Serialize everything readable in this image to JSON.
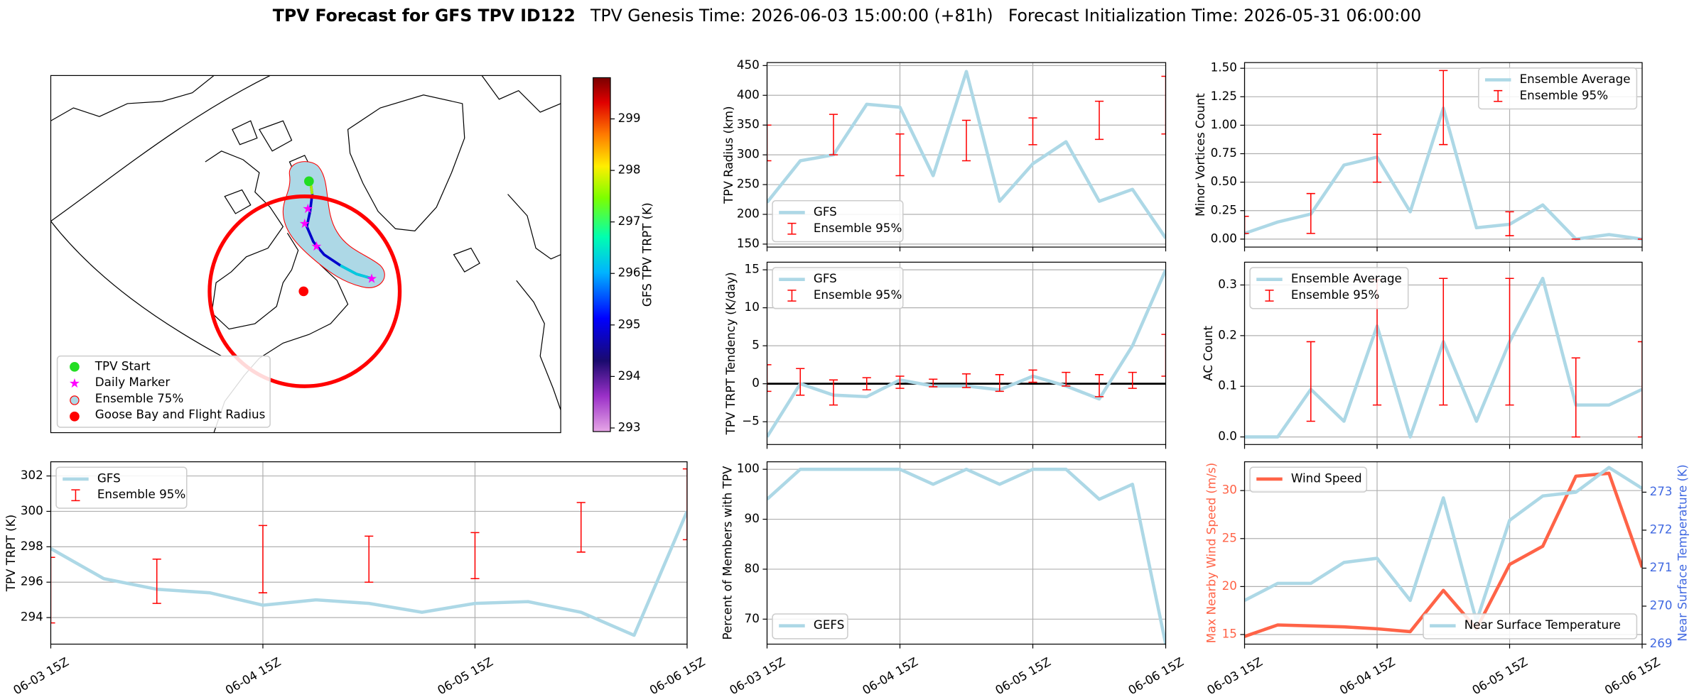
{
  "figure_title": {
    "main": "TPV Forecast for GFS TPV ID122",
    "genesis": "TPV Genesis Time: 2026-06-03 15:00:00 (+81h)",
    "init": "Forecast Initialization Time: 2026-05-31 06:00:00"
  },
  "map": {
    "legend": [
      "TPV Start",
      "Daily Marker",
      "Ensemble 75%",
      "Goose Bay and Flight Radius"
    ],
    "colorbar": {
      "label": "GFS TPV TRPT (K)",
      "lim": [
        292.93,
        299.8
      ],
      "ticks": [
        293,
        294,
        295,
        296,
        297,
        298,
        299
      ]
    }
  },
  "chart_data": [
    {
      "type": "line",
      "ylabel": "TPV Radius (km)",
      "grid": true,
      "legend": "lower left",
      "categories": [
        "06-03 15Z",
        null,
        null,
        null,
        "06-04 15Z",
        null,
        null,
        null,
        "06-05 15Z",
        null,
        null,
        null,
        "06-06 15Z"
      ],
      "ylim": [
        145,
        455
      ],
      "yticks": [
        150,
        200,
        250,
        300,
        350,
        400,
        450
      ],
      "series": [
        {
          "name": "GFS",
          "color": "#add8e6",
          "values": [
            220,
            290,
            300,
            385,
            380,
            265,
            440,
            222,
            285,
            322,
            222,
            242,
            160
          ]
        },
        {
          "name": "Ensemble 95%",
          "color": "#ff0000",
          "low": [
            290,
            null,
            300,
            null,
            265,
            null,
            290,
            null,
            317,
            null,
            326,
            null,
            335
          ],
          "high": [
            350,
            null,
            368,
            null,
            335,
            null,
            358,
            null,
            362,
            null,
            390,
            null,
            432
          ]
        }
      ]
    },
    {
      "type": "line",
      "ylabel": "Minor Vortices Count",
      "grid": true,
      "legend": "upper right",
      "categories": [
        "06-03 15Z",
        null,
        null,
        null,
        "06-04 15Z",
        null,
        null,
        null,
        "06-05 15Z",
        null,
        null,
        null,
        "06-06 15Z"
      ],
      "ylim": [
        -0.07,
        1.55
      ],
      "yticks": [
        {
          "value": 0,
          "label": "0.00"
        },
        {
          "value": 0.25,
          "label": "0.25"
        },
        {
          "value": 0.5,
          "label": "0.50"
        },
        {
          "value": 0.75,
          "label": "0.75"
        },
        {
          "value": 1,
          "label": "1.00"
        },
        {
          "value": 1.25,
          "label": "1.25"
        },
        {
          "value": 1.5,
          "label": "1.50"
        }
      ],
      "series": [
        {
          "name": "Ensemble Average",
          "color": "#add8e6",
          "values": [
            0.05,
            0.15,
            0.22,
            0.65,
            0.72,
            0.24,
            1.15,
            0.1,
            0.13,
            0.3,
            0,
            0.04,
            0
          ]
        },
        {
          "name": "Ensemble 95%",
          "color": "#ff0000",
          "low": [
            0.05,
            null,
            0.05,
            null,
            0.5,
            null,
            0.83,
            null,
            0.03,
            null,
            0,
            null,
            0
          ],
          "high": [
            0.2,
            null,
            0.4,
            null,
            0.92,
            null,
            1.48,
            null,
            0.24,
            null,
            0,
            null,
            0
          ]
        }
      ]
    },
    {
      "type": "line",
      "ylabel": "TPV TRPT Tendency (K/day)",
      "grid": true,
      "legend": "upper left",
      "zero_line": true,
      "categories": [
        "06-03 15Z",
        null,
        null,
        null,
        "06-04 15Z",
        null,
        null,
        null,
        "06-05 15Z",
        null,
        null,
        null,
        "06-06 15Z"
      ],
      "ylim": [
        -8,
        16
      ],
      "yticks": [
        {
          "value": -5,
          "label": "−5"
        },
        0,
        5,
        10,
        15
      ],
      "series": [
        {
          "name": "GFS",
          "color": "#add8e6",
          "values": [
            -7,
            0,
            -1.5,
            -1.7,
            0.5,
            -0.3,
            -0.3,
            -0.8,
            1,
            -0.3,
            -2,
            5,
            15
          ]
        },
        {
          "name": "Ensemble 95%",
          "color": "#ff0000",
          "low": [
            -1,
            -1.5,
            -2.8,
            -0.8,
            -0.6,
            -0.4,
            -0.5,
            -1,
            0.2,
            -0.3,
            -1.7,
            -0.6,
            1
          ],
          "high": [
            2.5,
            2,
            0.5,
            0.8,
            1,
            0.6,
            1.3,
            1.2,
            1.8,
            1.5,
            1.2,
            1.5,
            6.5
          ]
        }
      ]
    },
    {
      "type": "line",
      "ylabel": "AC Count",
      "grid": true,
      "legend": "upper left",
      "categories": [
        "06-03 15Z",
        null,
        null,
        null,
        "06-04 15Z",
        null,
        null,
        null,
        "06-05 15Z",
        null,
        null,
        null,
        "06-06 15Z"
      ],
      "ylim": [
        -0.015,
        0.345
      ],
      "yticks": [
        {
          "value": 0,
          "label": "0.0"
        },
        {
          "value": 0.1,
          "label": "0.1"
        },
        {
          "value": 0.2,
          "label": "0.2"
        },
        {
          "value": 0.3,
          "label": "0.3"
        }
      ],
      "series": [
        {
          "name": "Ensemble Average",
          "color": "#add8e6",
          "values": [
            0,
            0,
            0.094,
            0.031,
            0.219,
            0,
            0.188,
            0.031,
            0.188,
            0.313,
            0.063,
            0.063,
            0.094
          ]
        },
        {
          "name": "Ensemble 95%",
          "color": "#ff0000",
          "low": [
            null,
            null,
            0.031,
            null,
            0.063,
            null,
            0.063,
            null,
            0.063,
            null,
            0,
            null,
            0
          ],
          "high": [
            null,
            null,
            0.188,
            null,
            0.31,
            null,
            0.313,
            null,
            0.313,
            null,
            0.156,
            null,
            0.188
          ]
        }
      ]
    },
    {
      "type": "line",
      "ylabel": "TPV TRPT (K)",
      "grid": true,
      "legend": "upper left",
      "categories": [
        "06-03 15Z",
        null,
        null,
        null,
        "06-04 15Z",
        null,
        null,
        null,
        "06-05 15Z",
        null,
        null,
        null,
        "06-06 15Z"
      ],
      "ylim": [
        292.5,
        302.8
      ],
      "yticks": [
        294,
        296,
        298,
        300,
        302
      ],
      "series": [
        {
          "name": "GFS",
          "color": "#add8e6",
          "values": [
            297.9,
            296.2,
            295.6,
            295.4,
            294.7,
            295.0,
            294.8,
            294.3,
            294.8,
            294.9,
            294.3,
            293.0,
            300.0
          ]
        },
        {
          "name": "Ensemble 95%",
          "color": "#ff0000",
          "low": [
            293.7,
            null,
            294.8,
            null,
            295.4,
            null,
            296.0,
            null,
            296.2,
            null,
            297.7,
            null,
            298.4
          ],
          "high": [
            297.4,
            null,
            297.3,
            null,
            299.2,
            null,
            298.6,
            null,
            298.8,
            null,
            300.5,
            null,
            302.4
          ]
        }
      ]
    },
    {
      "type": "line",
      "ylabel": "Percent of Members with TPV",
      "grid": true,
      "legend": "lower left",
      "categories": [
        "06-03 15Z",
        null,
        null,
        null,
        "06-04 15Z",
        null,
        null,
        null,
        "06-05 15Z",
        null,
        null,
        null,
        "06-06 15Z"
      ],
      "ylim": [
        65,
        101.5
      ],
      "yticks": [
        70,
        80,
        90,
        100
      ],
      "series": [
        {
          "name": "GEFS",
          "color": "#add8e6",
          "values": [
            94,
            100,
            100,
            100,
            100,
            97,
            100,
            97,
            100,
            100,
            94,
            97,
            65
          ]
        }
      ]
    },
    {
      "type": "line",
      "ylabel": "Max Nearby Wind Speed (m/s)",
      "ylabel_color": "#ff6347",
      "y2label": "Near Surface Temperature (K)",
      "y2label_color": "#4169e1",
      "grid": true,
      "legend": "upper left",
      "categories": [
        "06-03 15Z",
        null,
        null,
        null,
        "06-04 15Z",
        null,
        null,
        null,
        "06-05 15Z",
        null,
        null,
        null,
        "06-06 15Z"
      ],
      "ylim": [
        14,
        33
      ],
      "yticks": [
        15,
        20,
        25,
        30
      ],
      "y2lim": [
        269,
        273.8
      ],
      "y2ticks": [
        269,
        270,
        271,
        272,
        273
      ],
      "series": [
        {
          "name": "Wind Speed",
          "color": "#ff6347",
          "values": [
            14.8,
            16,
            15.9,
            15.8,
            15.6,
            15.3,
            19.6,
            15.6,
            22.3,
            24.2,
            31.5,
            31.8,
            22
          ]
        },
        {
          "name": "Near Surface Temperature",
          "color": "#add8e6",
          "axis": "y2",
          "legend": "lower right",
          "values": [
            270.15,
            270.6,
            270.6,
            271.15,
            271.26,
            270.15,
            272.85,
            269.6,
            272.26,
            272.9,
            273.0,
            273.65,
            273.1
          ]
        }
      ]
    }
  ]
}
